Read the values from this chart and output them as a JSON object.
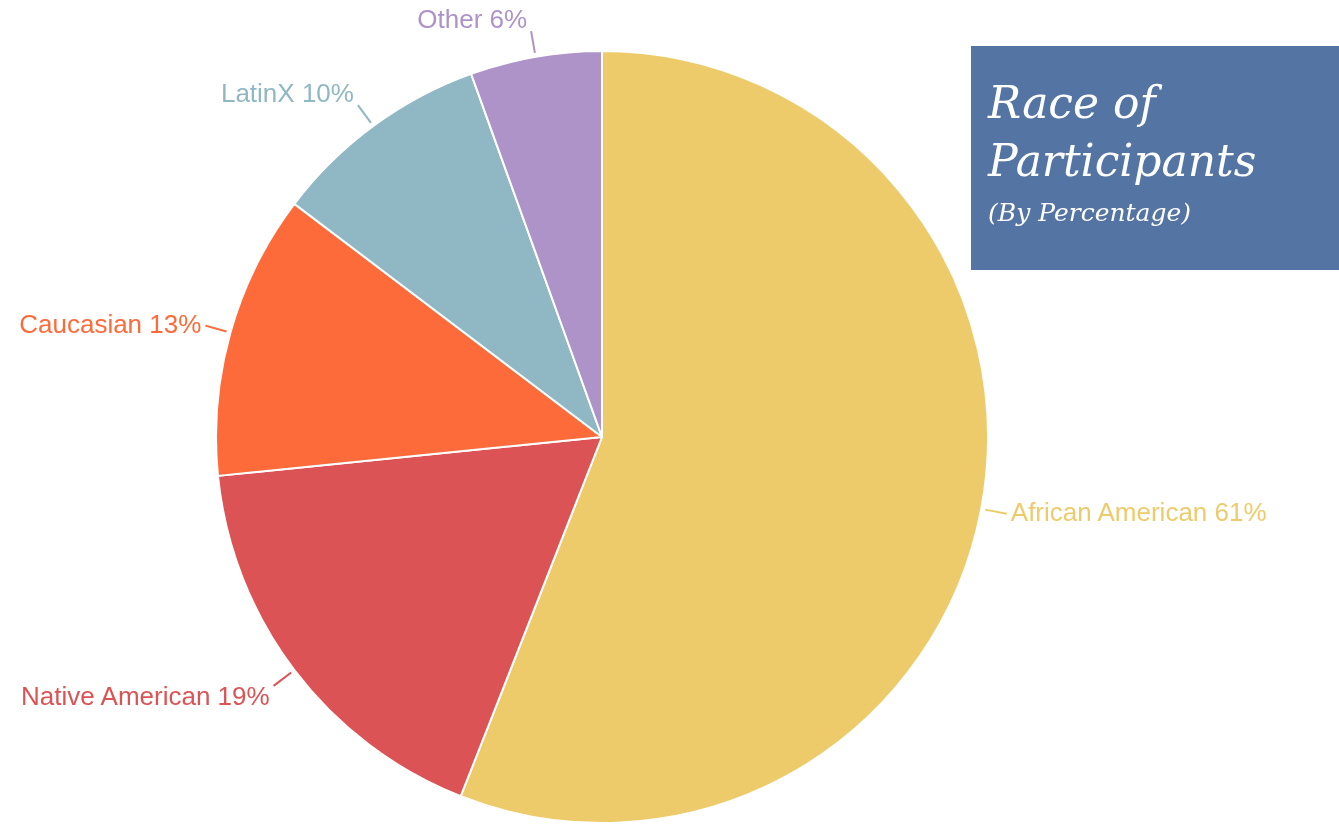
{
  "chart_data": {
    "type": "pie",
    "title": "Race of Participants",
    "subtitle": "(By Percentage)",
    "categories": [
      "African American",
      "Native American",
      "Caucasian",
      "LatinX",
      "Other"
    ],
    "values": [
      61,
      19,
      13,
      10,
      6
    ],
    "value_labels": [
      "61%",
      "19%",
      "13%",
      "10%",
      "6%"
    ],
    "colors": [
      "#eecb6a",
      "#db5355",
      "#fd6b3a",
      "#90b8c4",
      "#ad93c8"
    ]
  }
}
